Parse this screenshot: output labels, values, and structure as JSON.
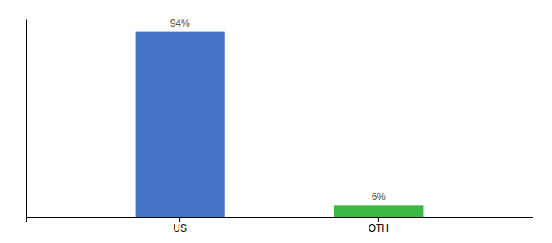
{
  "chart_data": {
    "type": "bar",
    "categories": [
      "US",
      "OTH"
    ],
    "values": [
      94,
      6
    ],
    "value_labels": [
      "94%",
      "6%"
    ],
    "data_labels": true,
    "colors": [
      "#4472c4",
      "#3cb943"
    ],
    "ylim": [
      0,
      100
    ],
    "tick_labels": "x"
  }
}
